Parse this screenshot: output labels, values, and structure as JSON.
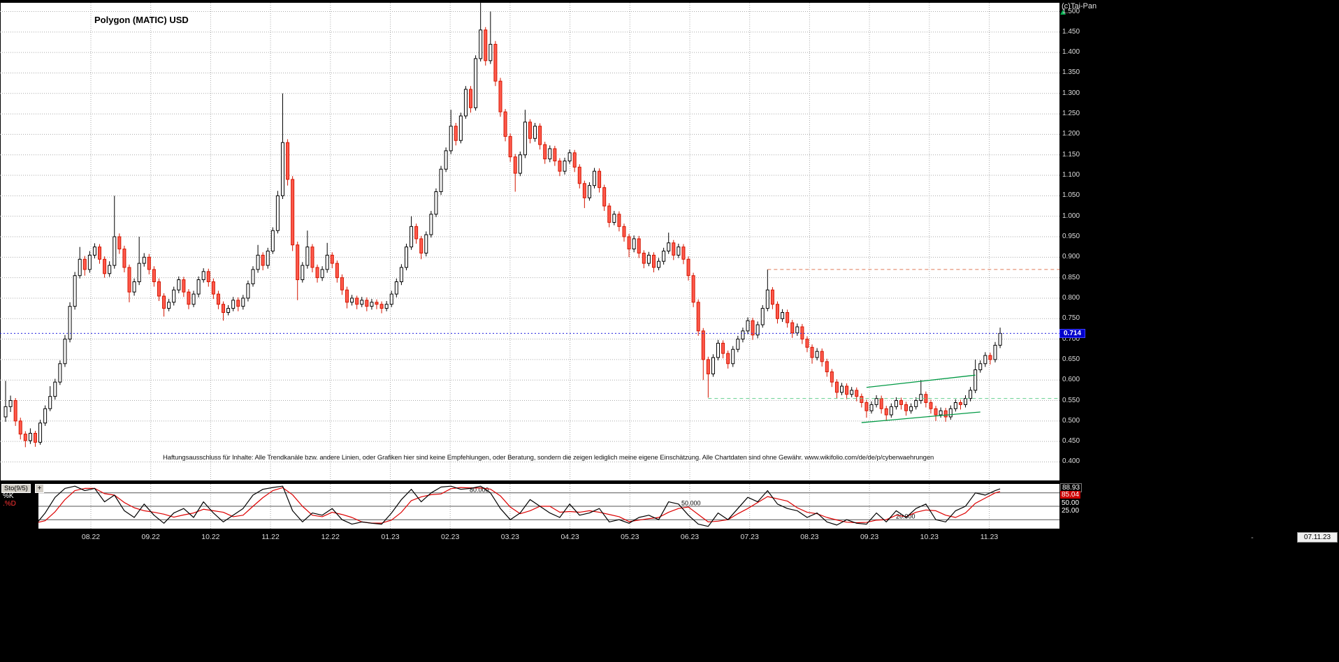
{
  "colors": {
    "background": "#000000",
    "plot_background": "#ffffff",
    "grid": "#aaaaaa",
    "up_candle_fill": "#ffffff",
    "up_candle_stroke": "#000000",
    "down_candle_fill": "#ff5a4d",
    "down_candle_stroke": "#d41600",
    "current_price_line": "#2222dd",
    "current_price_badge_bg": "#0000cc",
    "trend_line_green": "#009944",
    "support_dash_green": "#63cf8f",
    "resistance_dash_orange": "#e07b5a",
    "stochastic_k": "#000000",
    "stochastic_d": "#dd0000",
    "indicator_level_line": "#555555",
    "axis_text": "#dcdcdc"
  },
  "header": {
    "title": "Polygon (MATIC) USD",
    "copyright": "(c)Tai-Pan"
  },
  "disclaimer": "Haftungsausschluss für Inhalte: Alle Trendkanäle bzw. andere Linien, oder Grafiken hier sind keine Empfehlungen, oder Beratung, sondern die zeigen lediglich meine eigene Einschätzung. Alle Chartdaten sind ohne Gewähr. www.wikifolio.com/de/de/p/cyberwaehrungen",
  "price_axis": {
    "current_price": "0.714"
  },
  "time_axis": {
    "separator": "-",
    "current_date": "07.11.23"
  },
  "indicator": {
    "name": "Sto(9/5)",
    "expand_icon": "+",
    "k_label": "%K",
    "d_label": ".%D",
    "readouts": [
      {
        "text": "88.93",
        "style": "black-box"
      },
      {
        "text": "85.04",
        "style": "red-box"
      },
      {
        "text": "50.00",
        "style": "plain"
      },
      {
        "text": "25.00",
        "style": "plain"
      }
    ]
  },
  "chart_data": {
    "type": "candlestick",
    "title": "Polygon (MATIC) USD",
    "ylim": [
      0.4,
      1.5
    ],
    "y_ticks": [
      "1.500",
      "1.450",
      "1.400",
      "1.350",
      "1.300",
      "1.250",
      "1.200",
      "1.150",
      "1.100",
      "1.050",
      "1.000",
      "0.950",
      "0.900",
      "0.850",
      "0.800",
      "0.750",
      "0.700",
      "0.650",
      "0.600",
      "0.550",
      "0.500",
      "0.450",
      "0.400"
    ],
    "x_ticks": [
      "08.22",
      "09.22",
      "10.22",
      "11.22",
      "12.22",
      "01.23",
      "02.23",
      "03.23",
      "04.23",
      "05.23",
      "06.23",
      "07.23",
      "08.23",
      "09.23",
      "10.23",
      "11.23"
    ],
    "last_close": 0.714,
    "candles": [
      [
        0.51,
        0.598,
        0.498,
        0.535
      ],
      [
        0.535,
        0.562,
        0.522,
        0.55
      ],
      [
        0.55,
        0.556,
        0.488,
        0.5
      ],
      [
        0.5,
        0.508,
        0.455,
        0.468
      ],
      [
        0.468,
        0.475,
        0.436,
        0.452
      ],
      [
        0.452,
        0.482,
        0.444,
        0.47
      ],
      [
        0.47,
        0.476,
        0.437,
        0.448
      ],
      [
        0.448,
        0.503,
        0.442,
        0.495
      ],
      [
        0.495,
        0.538,
        0.488,
        0.53
      ],
      [
        0.53,
        0.585,
        0.524,
        0.56
      ],
      [
        0.56,
        0.603,
        0.552,
        0.595
      ],
      [
        0.595,
        0.648,
        0.588,
        0.64
      ],
      [
        0.64,
        0.71,
        0.632,
        0.7
      ],
      [
        0.7,
        0.79,
        0.692,
        0.78
      ],
      [
        0.78,
        0.864,
        0.772,
        0.855
      ],
      [
        0.855,
        0.925,
        0.848,
        0.895
      ],
      [
        0.895,
        0.903,
        0.855,
        0.87
      ],
      [
        0.87,
        0.915,
        0.862,
        0.905
      ],
      [
        0.905,
        0.934,
        0.897,
        0.925
      ],
      [
        0.925,
        0.932,
        0.884,
        0.895
      ],
      [
        0.895,
        0.902,
        0.85,
        0.86
      ],
      [
        0.86,
        0.89,
        0.852,
        0.88
      ],
      [
        0.88,
        1.05,
        0.872,
        0.95
      ],
      [
        0.95,
        0.958,
        0.908,
        0.92
      ],
      [
        0.92,
        0.928,
        0.863,
        0.875
      ],
      [
        0.875,
        0.882,
        0.79,
        0.815
      ],
      [
        0.815,
        0.848,
        0.806,
        0.84
      ],
      [
        0.84,
        0.95,
        0.832,
        0.885
      ],
      [
        0.885,
        0.91,
        0.877,
        0.9
      ],
      [
        0.9,
        0.908,
        0.858,
        0.87
      ],
      [
        0.87,
        0.878,
        0.828,
        0.84
      ],
      [
        0.84,
        0.848,
        0.793,
        0.805
      ],
      [
        0.805,
        0.812,
        0.755,
        0.775
      ],
      [
        0.775,
        0.798,
        0.768,
        0.79
      ],
      [
        0.79,
        0.828,
        0.782,
        0.82
      ],
      [
        0.82,
        0.853,
        0.812,
        0.845
      ],
      [
        0.845,
        0.852,
        0.803,
        0.815
      ],
      [
        0.815,
        0.822,
        0.773,
        0.785
      ],
      [
        0.785,
        0.818,
        0.778,
        0.81
      ],
      [
        0.81,
        0.853,
        0.802,
        0.845
      ],
      [
        0.845,
        0.873,
        0.838,
        0.865
      ],
      [
        0.865,
        0.872,
        0.828,
        0.84
      ],
      [
        0.84,
        0.848,
        0.798,
        0.81
      ],
      [
        0.81,
        0.818,
        0.773,
        0.785
      ],
      [
        0.785,
        0.792,
        0.745,
        0.765
      ],
      [
        0.765,
        0.783,
        0.758,
        0.775
      ],
      [
        0.775,
        0.803,
        0.768,
        0.795
      ],
      [
        0.795,
        0.802,
        0.768,
        0.78
      ],
      [
        0.78,
        0.808,
        0.772,
        0.8
      ],
      [
        0.8,
        0.843,
        0.792,
        0.835
      ],
      [
        0.835,
        0.878,
        0.828,
        0.87
      ],
      [
        0.87,
        0.93,
        0.862,
        0.905
      ],
      [
        0.905,
        0.912,
        0.868,
        0.88
      ],
      [
        0.88,
        0.923,
        0.872,
        0.915
      ],
      [
        0.915,
        0.973,
        0.908,
        0.965
      ],
      [
        0.965,
        1.062,
        0.958,
        1.05
      ],
      [
        1.05,
        1.3,
        1.042,
        1.18
      ],
      [
        1.18,
        1.188,
        1.075,
        1.09
      ],
      [
        1.09,
        1.098,
        0.915,
        0.93
      ],
      [
        0.93,
        0.938,
        0.795,
        0.845
      ],
      [
        0.845,
        0.888,
        0.838,
        0.88
      ],
      [
        0.88,
        0.965,
        0.872,
        0.925
      ],
      [
        0.925,
        0.932,
        0.863,
        0.875
      ],
      [
        0.875,
        0.882,
        0.838,
        0.85
      ],
      [
        0.85,
        0.878,
        0.842,
        0.87
      ],
      [
        0.87,
        0.935,
        0.862,
        0.905
      ],
      [
        0.905,
        0.912,
        0.873,
        0.885
      ],
      [
        0.885,
        0.892,
        0.838,
        0.85
      ],
      [
        0.85,
        0.858,
        0.808,
        0.82
      ],
      [
        0.82,
        0.828,
        0.775,
        0.79
      ],
      [
        0.79,
        0.808,
        0.782,
        0.8
      ],
      [
        0.8,
        0.806,
        0.773,
        0.785
      ],
      [
        0.785,
        0.803,
        0.778,
        0.795
      ],
      [
        0.795,
        0.802,
        0.768,
        0.78
      ],
      [
        0.78,
        0.798,
        0.772,
        0.79
      ],
      [
        0.79,
        0.797,
        0.773,
        0.785
      ],
      [
        0.785,
        0.792,
        0.763,
        0.775
      ],
      [
        0.775,
        0.793,
        0.768,
        0.785
      ],
      [
        0.785,
        0.818,
        0.778,
        0.81
      ],
      [
        0.81,
        0.848,
        0.802,
        0.84
      ],
      [
        0.84,
        0.883,
        0.832,
        0.875
      ],
      [
        0.875,
        0.933,
        0.868,
        0.925
      ],
      [
        0.925,
        1.0,
        0.918,
        0.975
      ],
      [
        0.975,
        0.982,
        0.933,
        0.945
      ],
      [
        0.945,
        0.952,
        0.895,
        0.91
      ],
      [
        0.91,
        0.963,
        0.902,
        0.955
      ],
      [
        0.955,
        1.013,
        0.948,
        1.005
      ],
      [
        1.005,
        1.068,
        0.998,
        1.06
      ],
      [
        1.06,
        1.123,
        1.052,
        1.115
      ],
      [
        1.115,
        1.168,
        1.108,
        1.16
      ],
      [
        1.16,
        1.26,
        1.152,
        1.22
      ],
      [
        1.22,
        1.228,
        1.173,
        1.185
      ],
      [
        1.185,
        1.253,
        1.178,
        1.245
      ],
      [
        1.245,
        1.318,
        1.238,
        1.31
      ],
      [
        1.31,
        1.318,
        1.253,
        1.265
      ],
      [
        1.265,
        1.393,
        1.258,
        1.385
      ],
      [
        1.385,
        1.57,
        1.378,
        1.455
      ],
      [
        1.455,
        1.462,
        1.368,
        1.38
      ],
      [
        1.38,
        1.5,
        1.372,
        1.42
      ],
      [
        1.42,
        1.428,
        1.318,
        1.33
      ],
      [
        1.33,
        1.338,
        1.243,
        1.255
      ],
      [
        1.255,
        1.262,
        1.183,
        1.195
      ],
      [
        1.195,
        1.202,
        1.133,
        1.145
      ],
      [
        1.145,
        1.152,
        1.06,
        1.105
      ],
      [
        1.105,
        1.158,
        1.098,
        1.15
      ],
      [
        1.15,
        1.26,
        1.142,
        1.23
      ],
      [
        1.23,
        1.237,
        1.178,
        1.19
      ],
      [
        1.19,
        1.228,
        1.182,
        1.22
      ],
      [
        1.22,
        1.227,
        1.163,
        1.175
      ],
      [
        1.175,
        1.182,
        1.128,
        1.14
      ],
      [
        1.14,
        1.173,
        1.132,
        1.165
      ],
      [
        1.165,
        1.172,
        1.123,
        1.135
      ],
      [
        1.135,
        1.142,
        1.098,
        1.11
      ],
      [
        1.11,
        1.143,
        1.102,
        1.135
      ],
      [
        1.135,
        1.163,
        1.128,
        1.155
      ],
      [
        1.155,
        1.162,
        1.108,
        1.12
      ],
      [
        1.12,
        1.127,
        1.068,
        1.08
      ],
      [
        1.08,
        1.087,
        1.02,
        1.045
      ],
      [
        1.045,
        1.083,
        1.038,
        1.075
      ],
      [
        1.075,
        1.118,
        1.068,
        1.11
      ],
      [
        1.11,
        1.117,
        1.058,
        1.07
      ],
      [
        1.07,
        1.077,
        1.013,
        1.025
      ],
      [
        1.025,
        1.032,
        0.973,
        0.985
      ],
      [
        0.985,
        1.013,
        0.978,
        1.005
      ],
      [
        1.005,
        1.012,
        0.963,
        0.975
      ],
      [
        0.975,
        0.982,
        0.938,
        0.95
      ],
      [
        0.95,
        0.957,
        0.9,
        0.92
      ],
      [
        0.92,
        0.953,
        0.912,
        0.945
      ],
      [
        0.945,
        0.952,
        0.898,
        0.91
      ],
      [
        0.91,
        0.917,
        0.873,
        0.885
      ],
      [
        0.885,
        0.913,
        0.878,
        0.905
      ],
      [
        0.905,
        0.912,
        0.863,
        0.875
      ],
      [
        0.875,
        0.898,
        0.868,
        0.89
      ],
      [
        0.89,
        0.923,
        0.882,
        0.915
      ],
      [
        0.915,
        0.96,
        0.908,
        0.935
      ],
      [
        0.935,
        0.942,
        0.893,
        0.905
      ],
      [
        0.905,
        0.933,
        0.898,
        0.925
      ],
      [
        0.925,
        0.932,
        0.883,
        0.895
      ],
      [
        0.895,
        0.902,
        0.843,
        0.855
      ],
      [
        0.855,
        0.862,
        0.778,
        0.79
      ],
      [
        0.79,
        0.797,
        0.708,
        0.72
      ],
      [
        0.72,
        0.727,
        0.6,
        0.65
      ],
      [
        0.65,
        0.657,
        0.557,
        0.615
      ],
      [
        0.615,
        0.663,
        0.608,
        0.655
      ],
      [
        0.655,
        0.698,
        0.648,
        0.69
      ],
      [
        0.69,
        0.697,
        0.653,
        0.665
      ],
      [
        0.665,
        0.672,
        0.628,
        0.64
      ],
      [
        0.64,
        0.683,
        0.632,
        0.675
      ],
      [
        0.675,
        0.708,
        0.668,
        0.7
      ],
      [
        0.7,
        0.728,
        0.692,
        0.72
      ],
      [
        0.72,
        0.753,
        0.712,
        0.745
      ],
      [
        0.745,
        0.752,
        0.698,
        0.71
      ],
      [
        0.71,
        0.743,
        0.702,
        0.735
      ],
      [
        0.735,
        0.783,
        0.728,
        0.775
      ],
      [
        0.775,
        0.87,
        0.768,
        0.82
      ],
      [
        0.82,
        0.827,
        0.773,
        0.785
      ],
      [
        0.785,
        0.792,
        0.738,
        0.75
      ],
      [
        0.75,
        0.773,
        0.742,
        0.765
      ],
      [
        0.765,
        0.772,
        0.728,
        0.74
      ],
      [
        0.74,
        0.747,
        0.703,
        0.715
      ],
      [
        0.715,
        0.738,
        0.708,
        0.73
      ],
      [
        0.73,
        0.737,
        0.688,
        0.7
      ],
      [
        0.7,
        0.707,
        0.668,
        0.68
      ],
      [
        0.68,
        0.687,
        0.64,
        0.655
      ],
      [
        0.655,
        0.678,
        0.648,
        0.67
      ],
      [
        0.67,
        0.677,
        0.633,
        0.645
      ],
      [
        0.645,
        0.652,
        0.608,
        0.62
      ],
      [
        0.62,
        0.627,
        0.583,
        0.595
      ],
      [
        0.595,
        0.602,
        0.555,
        0.57
      ],
      [
        0.57,
        0.593,
        0.563,
        0.585
      ],
      [
        0.585,
        0.592,
        0.553,
        0.565
      ],
      [
        0.565,
        0.583,
        0.558,
        0.575
      ],
      [
        0.575,
        0.582,
        0.548,
        0.56
      ],
      [
        0.56,
        0.567,
        0.533,
        0.545
      ],
      [
        0.545,
        0.552,
        0.508,
        0.525
      ],
      [
        0.525,
        0.548,
        0.518,
        0.54
      ],
      [
        0.54,
        0.563,
        0.533,
        0.555
      ],
      [
        0.555,
        0.562,
        0.518,
        0.53
      ],
      [
        0.53,
        0.537,
        0.5,
        0.515
      ],
      [
        0.515,
        0.543,
        0.508,
        0.535
      ],
      [
        0.535,
        0.558,
        0.528,
        0.55
      ],
      [
        0.55,
        0.557,
        0.528,
        0.54
      ],
      [
        0.54,
        0.547,
        0.513,
        0.525
      ],
      [
        0.525,
        0.543,
        0.518,
        0.535
      ],
      [
        0.535,
        0.558,
        0.528,
        0.55
      ],
      [
        0.55,
        0.6,
        0.542,
        0.565
      ],
      [
        0.565,
        0.572,
        0.533,
        0.545
      ],
      [
        0.545,
        0.552,
        0.518,
        0.53
      ],
      [
        0.53,
        0.537,
        0.5,
        0.515
      ],
      [
        0.515,
        0.533,
        0.508,
        0.525
      ],
      [
        0.525,
        0.532,
        0.498,
        0.51
      ],
      [
        0.51,
        0.538,
        0.503,
        0.53
      ],
      [
        0.53,
        0.553,
        0.523,
        0.545
      ],
      [
        0.545,
        0.552,
        0.528,
        0.54
      ],
      [
        0.54,
        0.563,
        0.533,
        0.555
      ],
      [
        0.555,
        0.583,
        0.548,
        0.575
      ],
      [
        0.575,
        0.65,
        0.568,
        0.625
      ],
      [
        0.625,
        0.648,
        0.618,
        0.64
      ],
      [
        0.64,
        0.668,
        0.632,
        0.66
      ],
      [
        0.66,
        0.667,
        0.638,
        0.65
      ],
      [
        0.65,
        0.693,
        0.643,
        0.685
      ],
      [
        0.685,
        0.728,
        0.678,
        0.714
      ]
    ],
    "overlays": {
      "current_price_line": 0.714,
      "resistance_line": {
        "price": 0.87,
        "from_index": 154
      },
      "support_line": {
        "price": 0.555,
        "from_index": 142
      },
      "trend_lines": [
        {
          "i1": 174,
          "p1": 0.582,
          "i2": 196,
          "p2": 0.612
        },
        {
          "i1": 173,
          "p1": 0.496,
          "i2": 197,
          "p2": 0.522
        }
      ]
    },
    "stochastic": {
      "type": "line",
      "range": [
        0,
        100
      ],
      "levels": [
        {
          "value": 80,
          "label": "80.000"
        },
        {
          "value": 50,
          "label": "50.000"
        },
        {
          "value": 20,
          "label": "20.000"
        }
      ],
      "sample_step": 2,
      "k_percent": [
        40,
        20,
        10,
        8,
        35,
        70,
        90,
        95,
        85,
        90,
        60,
        75,
        40,
        25,
        55,
        30,
        12,
        35,
        45,
        25,
        60,
        35,
        15,
        30,
        45,
        75,
        88,
        92,
        95,
        40,
        15,
        35,
        30,
        45,
        20,
        10,
        15,
        12,
        10,
        35,
        65,
        88,
        60,
        80,
        93,
        95,
        88,
        90,
        95,
        80,
        45,
        20,
        35,
        65,
        50,
        35,
        25,
        55,
        30,
        35,
        45,
        15,
        20,
        12,
        25,
        30,
        20,
        60,
        55,
        30,
        10,
        5,
        35,
        20,
        45,
        70,
        60,
        85,
        55,
        45,
        40,
        25,
        35,
        15,
        8,
        20,
        12,
        10,
        35,
        15,
        40,
        25,
        45,
        55,
        20,
        15,
        40,
        50,
        80,
        75,
        85,
        88.93
      ],
      "k_last": 88.93,
      "d_last": 85.04
    }
  }
}
